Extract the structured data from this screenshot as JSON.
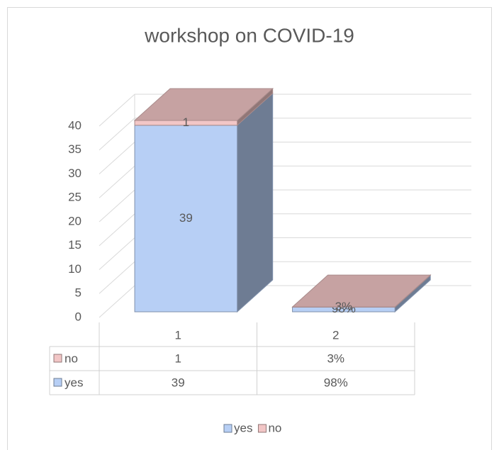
{
  "chart_data": {
    "type": "bar3d_stacked",
    "title": "workshop on COVID-19",
    "categories": [
      "1",
      "2"
    ],
    "series": [
      {
        "name": "yes",
        "color": "#b7cff5",
        "values": [
          39,
          0.98
        ],
        "value_labels": [
          "39",
          "98%"
        ]
      },
      {
        "name": "no",
        "color": "#f2c6c6",
        "values": [
          1,
          0.03
        ],
        "value_labels": [
          "1",
          "3%"
        ]
      }
    ],
    "ylim": [
      0,
      40
    ],
    "yticks": [
      0,
      5,
      10,
      15,
      20,
      25,
      30,
      35,
      40
    ],
    "grid": true,
    "legend": "bottom",
    "data_table": true
  }
}
